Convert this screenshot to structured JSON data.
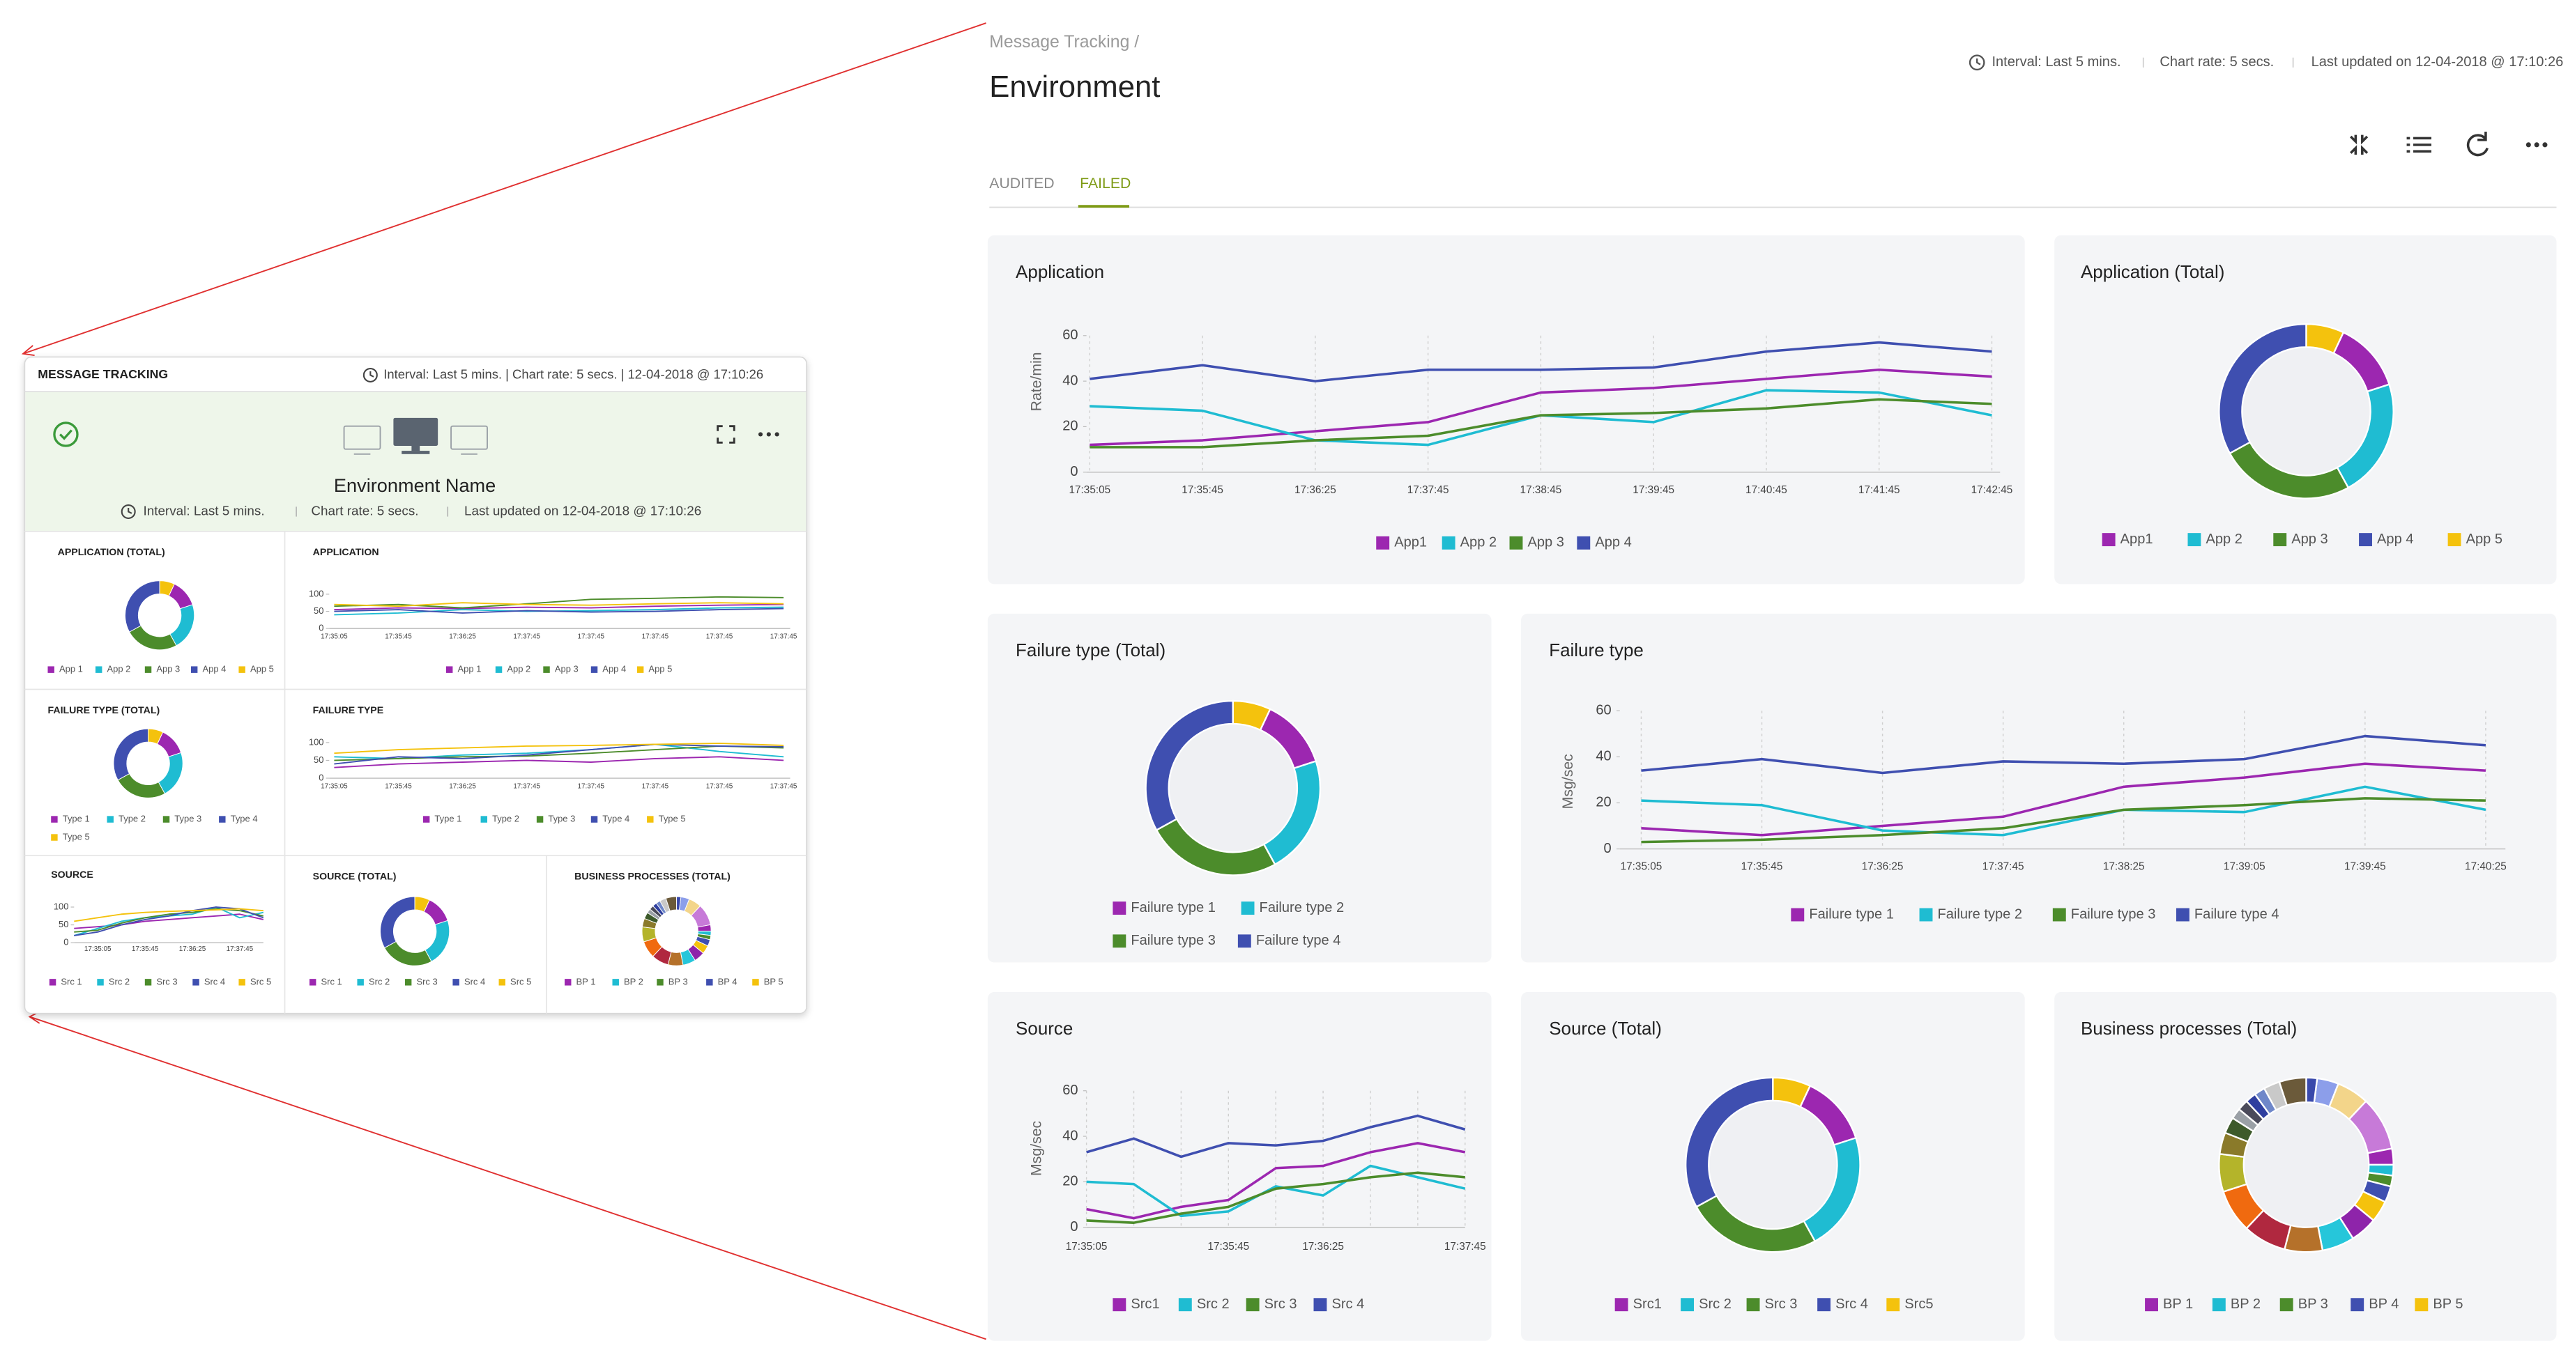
{
  "header": {
    "breadcrumb": "Message Tracking /",
    "title": "Environment",
    "interval": "Interval: Last 5 mins.",
    "chart_rate": "Chart rate: 5 secs.",
    "last_updated": "Last updated on 12-04-2018 @ 17:10:26"
  },
  "tabs": [
    "AUDITED",
    "FAILED"
  ],
  "chart_data": [
    {
      "type": "line",
      "title": "Application",
      "ylabel": "Rate/min",
      "grid": true,
      "legend": "bottom",
      "categories": [
        "17:35:05",
        "17:35:45",
        "17:36:25",
        "17:37:45",
        "17:38:45",
        "17:39:45",
        "17:40:45",
        "17:41:45",
        "17:42:45"
      ],
      "ylim": [
        0,
        60
      ],
      "yticks": [
        0,
        20,
        40,
        60
      ],
      "series": [
        {
          "name": "App1",
          "color": "#9c27b0",
          "values": [
            12,
            14,
            18,
            22,
            35,
            37,
            41,
            45,
            42
          ]
        },
        {
          "name": "App 2",
          "color": "#1fbcd2",
          "values": [
            29,
            27,
            14,
            12,
            25,
            22,
            36,
            35,
            25
          ]
        },
        {
          "name": "App 3",
          "color": "#4c8c2b",
          "values": [
            11,
            11,
            14,
            16,
            25,
            26,
            28,
            32,
            30
          ]
        },
        {
          "name": "App 4",
          "color": "#3f4fb0",
          "values": [
            41,
            47,
            40,
            45,
            45,
            46,
            53,
            57,
            53
          ]
        }
      ]
    },
    {
      "type": "donut",
      "title": "Application (Total)",
      "legend": "bottom",
      "categories": [
        "App1",
        "App 2",
        "App 3",
        "App 4",
        "App 5"
      ],
      "values": [
        13,
        22,
        25,
        33,
        7
      ],
      "colors": [
        "#9c27b0",
        "#1fbcd2",
        "#4c8c2b",
        "#3f4fb0",
        "#f4c20d"
      ]
    },
    {
      "type": "donut",
      "title": "Failure type (Total)",
      "legend": "bottom",
      "categories": [
        "Failure type 1",
        "Failure type 2",
        "Failure type 3",
        "Failure type 4",
        null
      ],
      "values": [
        13,
        22,
        25,
        33,
        7
      ],
      "colors": [
        "#9c27b0",
        "#1fbcd2",
        "#4c8c2b",
        "#3f4fb0",
        "#f4c20d"
      ]
    },
    {
      "type": "line",
      "title": "Failure type",
      "ylabel": "Msg/sec",
      "grid": true,
      "legend": "bottom",
      "categories": [
        "17:35:05",
        "17:35:45",
        "17:36:25",
        "17:37:45",
        "17:38:25",
        "17:39:05",
        "17:39:45",
        "17:40:25"
      ],
      "ylim": [
        0,
        60
      ],
      "yticks": [
        0,
        20,
        40,
        60
      ],
      "series": [
        {
          "name": "Failure type 1",
          "color": "#9c27b0",
          "values": [
            9,
            6,
            10,
            14,
            27,
            31,
            37,
            34
          ]
        },
        {
          "name": "Failure type 2",
          "color": "#1fbcd2",
          "values": [
            21,
            19,
            8,
            6,
            17,
            16,
            27,
            17
          ]
        },
        {
          "name": "Failure type 3",
          "color": "#4c8c2b",
          "values": [
            3,
            4,
            6,
            9,
            17,
            19,
            22,
            21
          ]
        },
        {
          "name": "Failure type 4",
          "color": "#3f4fb0",
          "values": [
            34,
            39,
            33,
            38,
            37,
            39,
            49,
            45
          ]
        }
      ]
    },
    {
      "type": "line",
      "title": "Source",
      "ylabel": "Msg/sec",
      "grid": true,
      "legend": "bottom",
      "categories": [
        "17:35:05",
        null,
        null,
        "17:35:45",
        null,
        "17:36:25",
        null,
        null,
        "17:37:45"
      ],
      "ylim": [
        0,
        60
      ],
      "yticks": [
        0,
        20,
        40,
        60
      ],
      "series": [
        {
          "name": "Src1",
          "color": "#9c27b0",
          "values": [
            8,
            4,
            9,
            12,
            26,
            27,
            33,
            37,
            33
          ]
        },
        {
          "name": "Src 2",
          "color": "#1fbcd2",
          "values": [
            20,
            19,
            5,
            7,
            18,
            14,
            27,
            22,
            17
          ]
        },
        {
          "name": "Src 3",
          "color": "#4c8c2b",
          "values": [
            3,
            2,
            6,
            9,
            17,
            19,
            22,
            24,
            22
          ]
        },
        {
          "name": "Src 4",
          "color": "#3f4fb0",
          "values": [
            33,
            39,
            31,
            37,
            36,
            38,
            44,
            49,
            43
          ]
        }
      ]
    },
    {
      "type": "donut",
      "title": "Source (Total)",
      "legend": "bottom",
      "categories": [
        "Src1",
        "Src 2",
        "Src 3",
        "Src 4",
        "Src5"
      ],
      "values": [
        13,
        22,
        25,
        33,
        7
      ],
      "colors": [
        "#9c27b0",
        "#1fbcd2",
        "#4c8c2b",
        "#3f4fb0",
        "#f4c20d"
      ]
    },
    {
      "type": "donut",
      "title": "Business processes (Total)",
      "legend": "bottom",
      "categories": [
        null,
        null,
        null,
        "BP 1",
        "BP 2",
        "BP 3",
        "BP 4",
        "BP 5",
        null,
        null,
        null,
        null,
        null,
        null,
        null,
        null,
        null,
        null,
        null,
        null,
        null,
        null,
        null
      ],
      "values": [
        4,
        6,
        10,
        3,
        2,
        2,
        3,
        4,
        5,
        6,
        7,
        8,
        8,
        7,
        4,
        3,
        2,
        2,
        2,
        2,
        3,
        5,
        2
      ],
      "colors": [
        "#8c9eea",
        "#f3d58a",
        "#c77ad8",
        "#9c27b0",
        "#1fbcd2",
        "#4c8c2b",
        "#3f4fb0",
        "#f4c20d",
        "#8e24aa",
        "#26c6da",
        "#b5712a",
        "#b0283f",
        "#f06a0f",
        "#b4b42a",
        "#8a7a2a",
        "#3d5a2a",
        "#9aa0a6",
        "#4a4a5a",
        "#2f3f9f",
        "#6f87c9",
        "#c9c9c9",
        "#6b5a3a",
        "#3949ab"
      ]
    }
  ],
  "widget": {
    "title": "MESSAGE TRACKING",
    "summary": "Interval: Last 5 mins. | Chart rate: 5 secs. | 12-04-2018 @ 17:10:26",
    "environment": "Environment Name",
    "interval": "Interval: Last 5 mins.",
    "chart_rate": "Chart rate: 5 secs.",
    "last_updated": "Last updated on 12-04-2018 @ 17:10:26",
    "chart_data": [
      {
        "type": "donut",
        "title": "APPLICATION (TOTAL)",
        "legend": "bottom",
        "categories": [
          "App 1",
          "App 2",
          "App 3",
          "App 4",
          "App 5"
        ],
        "values": [
          13,
          22,
          25,
          33,
          7
        ],
        "colors": [
          "#9c27b0",
          "#1fbcd2",
          "#4c8c2b",
          "#3f4fb0",
          "#f4c20d"
        ]
      },
      {
        "type": "line",
        "title": "APPLICATION",
        "grid": false,
        "legend": "bottom",
        "categories": [
          "17:35:05",
          "17:35:45",
          "17:36:25",
          "17:37:45",
          "17:37:45",
          "17:37:45",
          "17:37:45",
          "17:37:45"
        ],
        "ylim": [
          0,
          120
        ],
        "yticks": [
          0,
          50,
          100
        ],
        "series": [
          {
            "name": "App 1",
            "color": "#9c27b0",
            "values": [
              55,
              60,
              58,
              62,
              60,
              65,
              68,
              70
            ]
          },
          {
            "name": "App 2",
            "color": "#1fbcd2",
            "values": [
              40,
              45,
              55,
              50,
              52,
              55,
              60,
              62
            ]
          },
          {
            "name": "App 3",
            "color": "#4c8c2b",
            "values": [
              65,
              70,
              60,
              72,
              85,
              88,
              92,
              90
            ]
          },
          {
            "name": "App 4",
            "color": "#3f4fb0",
            "values": [
              50,
              55,
              45,
              52,
              48,
              50,
              55,
              58
            ]
          },
          {
            "name": "App 5",
            "color": "#f4c20d",
            "values": [
              70,
              65,
              75,
              70,
              68,
              72,
              75,
              72
            ]
          }
        ]
      },
      {
        "type": "donut",
        "title": "FAILURE TYPE (TOTAL)",
        "legend": "bottom",
        "categories": [
          "Type 1",
          "Type 2",
          "Type 3",
          "Type 4",
          "Type 5"
        ],
        "values": [
          13,
          22,
          25,
          33,
          7
        ],
        "colors": [
          "#9c27b0",
          "#1fbcd2",
          "#4c8c2b",
          "#3f4fb0",
          "#f4c20d"
        ]
      },
      {
        "type": "line",
        "title": "FAILURE TYPE",
        "grid": false,
        "legend": "bottom",
        "categories": [
          "17:35:05",
          "17:35:45",
          "17:36:25",
          "17:37:45",
          "17:37:45",
          "17:37:45",
          "17:37:45",
          "17:37:45"
        ],
        "ylim": [
          0,
          120
        ],
        "yticks": [
          0,
          50,
          100
        ],
        "series": [
          {
            "name": "Type 1",
            "color": "#9c27b0",
            "values": [
              30,
              40,
              45,
              50,
              45,
              55,
              60,
              50
            ]
          },
          {
            "name": "Type 2",
            "color": "#1fbcd2",
            "values": [
              60,
              55,
              65,
              70,
              80,
              95,
              75,
              60
            ]
          },
          {
            "name": "Type 3",
            "color": "#4c8c2b",
            "values": [
              50,
              55,
              60,
              62,
              70,
              80,
              90,
              85
            ]
          },
          {
            "name": "Type 4",
            "color": "#3f4fb0",
            "values": [
              40,
              60,
              55,
              65,
              80,
              95,
              90,
              88
            ]
          },
          {
            "name": "Type 5",
            "color": "#f4c20d",
            "values": [
              70,
              80,
              85,
              90,
              92,
              95,
              98,
              92
            ]
          }
        ]
      },
      {
        "type": "line",
        "title": "SOURCE",
        "grid": false,
        "legend": "bottom",
        "categories": [
          null,
          "17:35:05",
          null,
          "17:35:45",
          null,
          "17:36:25",
          null,
          "17:37:45",
          null
        ],
        "ylim": [
          0,
          120
        ],
        "yticks": [
          0,
          50,
          100
        ],
        "series": [
          {
            "name": "Src 1",
            "color": "#9c27b0",
            "values": [
              40,
              45,
              50,
              60,
              65,
              70,
              75,
              80,
              65
            ]
          },
          {
            "name": "Src 2",
            "color": "#1fbcd2",
            "values": [
              20,
              40,
              60,
              70,
              75,
              80,
              100,
              70,
              85
            ]
          },
          {
            "name": "Src 3",
            "color": "#4c8c2b",
            "values": [
              30,
              35,
              55,
              70,
              80,
              85,
              95,
              90,
              75
            ]
          },
          {
            "name": "Src 4",
            "color": "#3f4fb0",
            "values": [
              20,
              30,
              50,
              65,
              75,
              90,
              100,
              95,
              70
            ]
          },
          {
            "name": "Src 5",
            "color": "#f4c20d",
            "values": [
              60,
              70,
              80,
              85,
              88,
              90,
              92,
              95,
              90
            ]
          }
        ]
      },
      {
        "type": "donut",
        "title": "SOURCE (TOTAL)",
        "legend": "bottom",
        "categories": [
          "Src 1",
          "Src 2",
          "Src 3",
          "Src 4",
          "Src 5"
        ],
        "values": [
          13,
          22,
          25,
          33,
          7
        ],
        "colors": [
          "#9c27b0",
          "#1fbcd2",
          "#4c8c2b",
          "#3f4fb0",
          "#f4c20d"
        ]
      },
      {
        "type": "donut",
        "title": "BUSINESS PROCESSES (TOTAL)",
        "legend": "bottom",
        "categories": [
          null,
          null,
          null,
          "BP 1",
          "BP 2",
          "BP 3",
          "BP 4",
          "BP 5",
          null,
          null,
          null,
          null,
          null,
          null,
          null,
          null,
          null,
          null,
          null,
          null,
          null,
          null,
          null
        ],
        "values": [
          4,
          6,
          10,
          3,
          2,
          2,
          3,
          4,
          5,
          6,
          7,
          8,
          8,
          7,
          4,
          3,
          2,
          2,
          2,
          2,
          3,
          5,
          2
        ],
        "colors": [
          "#8c9eea",
          "#f3d58a",
          "#c77ad8",
          "#9c27b0",
          "#1fbcd2",
          "#4c8c2b",
          "#3f4fb0",
          "#f4c20d",
          "#8e24aa",
          "#26c6da",
          "#b5712a",
          "#b0283f",
          "#f06a0f",
          "#b4b42a",
          "#8a7a2a",
          "#3d5a2a",
          "#9aa0a6",
          "#4a4a5a",
          "#2f3f9f",
          "#6f87c9",
          "#c9c9c9",
          "#6b5a3a",
          "#3949ab"
        ]
      }
    ]
  }
}
